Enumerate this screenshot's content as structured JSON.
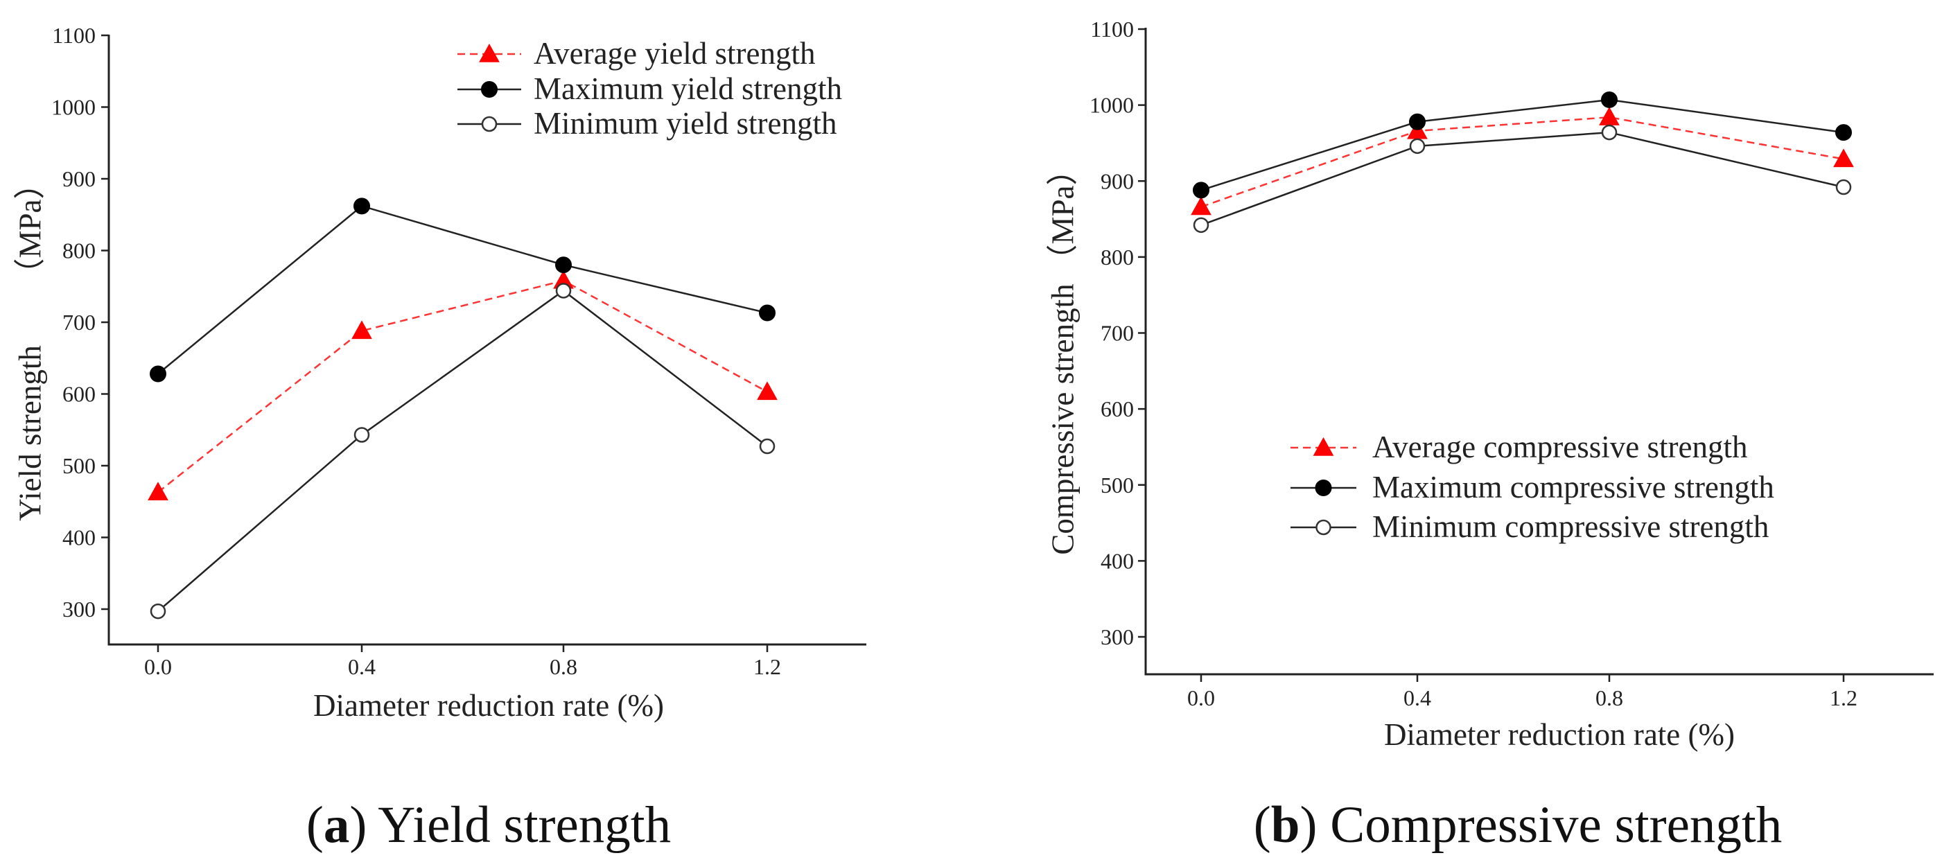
{
  "chart_data": [
    {
      "type": "line",
      "panel_letter": "a",
      "caption": "Yield strength",
      "title": "",
      "xlabel": "Diameter reduction rate (%)",
      "ylabel": "Yield strength （MPa）",
      "ylabel_parts": [
        "Yield strength",
        "（MPa）"
      ],
      "categories": [
        "0.0",
        "0.4",
        "0.8",
        "1.2"
      ],
      "ylim": [
        250,
        1100
      ],
      "yticks": [
        "300",
        "400",
        "500",
        "600",
        "700",
        "800",
        "900",
        "1000",
        "1100"
      ],
      "legend_position": "top-right",
      "series": [
        {
          "name": "Average yield strength",
          "marker": "triangle",
          "color": "#ff0000",
          "line_style": "dashed",
          "values": [
            463,
            688,
            758,
            603
          ]
        },
        {
          "name": "Maximum yield strength",
          "marker": "filled-circle",
          "color": "#000000",
          "line_style": "solid",
          "values": [
            628,
            862,
            780,
            713
          ]
        },
        {
          "name": "Minimum yield strength",
          "marker": "open-circle",
          "color": "#333333",
          "line_style": "solid",
          "values": [
            297,
            543,
            744,
            527
          ]
        }
      ]
    },
    {
      "type": "line",
      "panel_letter": "b",
      "caption": "Compressive strength",
      "title": "",
      "xlabel": "Diameter reduction rate (%)",
      "ylabel": "Compressive strength （MPa）",
      "ylabel_parts": [
        "Compressive strength",
        "（MPa）"
      ],
      "categories": [
        "0.0",
        "0.4",
        "0.8",
        "1.2"
      ],
      "ylim": [
        250,
        1100
      ],
      "yticks": [
        "300",
        "400",
        "500",
        "600",
        "700",
        "800",
        "900",
        "1000",
        "1100"
      ],
      "legend_position": "center-right",
      "series": [
        {
          "name": "Average compressive strength",
          "marker": "triangle",
          "color": "#ff0000",
          "line_style": "dashed",
          "values": [
            866,
            966,
            984,
            929
          ]
        },
        {
          "name": "Maximum compressive strength",
          "marker": "filled-circle",
          "color": "#000000",
          "line_style": "solid",
          "values": [
            888,
            978,
            1007,
            964
          ]
        },
        {
          "name": "Minimum compressive strength",
          "marker": "open-circle",
          "color": "#333333",
          "line_style": "solid",
          "values": [
            842,
            946,
            964,
            892
          ]
        }
      ]
    }
  ]
}
